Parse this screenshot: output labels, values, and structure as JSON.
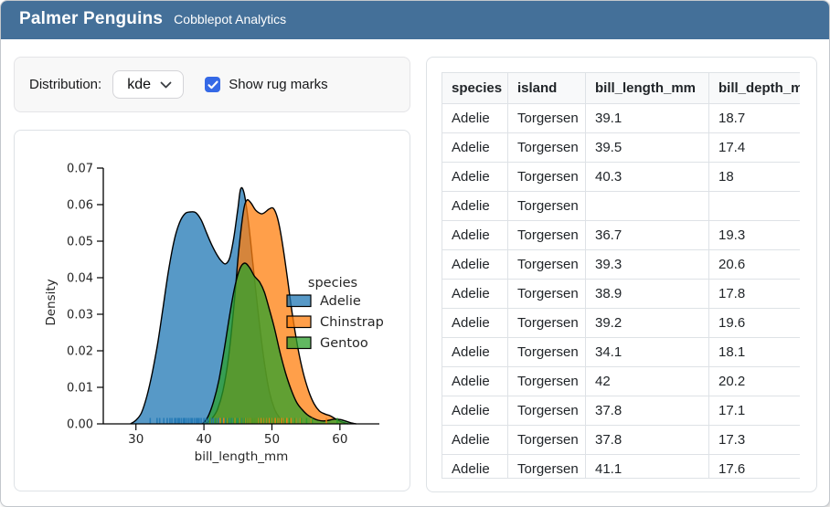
{
  "header": {
    "title": "Palmer Penguins",
    "subtitle": "Cobblepot Analytics",
    "bg_color": "#447099"
  },
  "controls": {
    "distribution_label": "Distribution:",
    "distribution_value": "kde",
    "rug_label": "Show rug marks",
    "rug_checked": true,
    "checkbox_color": "#3569e6"
  },
  "chart_data": {
    "type": "area",
    "kind": "kde-density",
    "title": "",
    "xlabel": "bill_length_mm",
    "ylabel": "Density",
    "xlim": [
      25.2,
      65.8
    ],
    "ylim": [
      0,
      0.07
    ],
    "xticks": [
      30,
      40,
      50,
      60
    ],
    "ytick_labels": [
      "0.00",
      "0.01",
      "0.02",
      "0.03",
      "0.04",
      "0.05",
      "0.06",
      "0.07"
    ],
    "grid": false,
    "legend": {
      "title": "species",
      "position": "center-right",
      "frame": false
    },
    "rug_visible": true,
    "series": [
      {
        "name": "Adelie",
        "color": "#1f77b4",
        "fill_opacity": 0.75,
        "points": [
          [
            29.2,
            0
          ],
          [
            30,
            0.001
          ],
          [
            30.8,
            0.003
          ],
          [
            31.6,
            0.0075
          ],
          [
            32.4,
            0.014
          ],
          [
            33.2,
            0.022
          ],
          [
            34,
            0.032
          ],
          [
            34.8,
            0.042
          ],
          [
            35.6,
            0.05
          ],
          [
            36.4,
            0.055
          ],
          [
            37.2,
            0.0575
          ],
          [
            38,
            0.058
          ],
          [
            38.8,
            0.0578
          ],
          [
            39.6,
            0.0558
          ],
          [
            40.4,
            0.0522
          ],
          [
            41.2,
            0.0488
          ],
          [
            42,
            0.046
          ],
          [
            42.6,
            0.0445
          ],
          [
            43.2,
            0.0438
          ],
          [
            43.8,
            0.0455
          ],
          [
            44.4,
            0.051
          ],
          [
            45,
            0.059
          ],
          [
            45.4,
            0.0643
          ],
          [
            45.9,
            0.0632
          ],
          [
            46.5,
            0.056
          ],
          [
            47.2,
            0.044
          ],
          [
            48,
            0.03
          ],
          [
            48.8,
            0.018
          ],
          [
            49.6,
            0.009
          ],
          [
            50.4,
            0.004
          ],
          [
            51.2,
            0.0015
          ],
          [
            52,
            0
          ]
        ],
        "rug": [
          32.1,
          33.1,
          33.5,
          34.1,
          34.6,
          35.0,
          35.3,
          35.7,
          35.9,
          36.2,
          36.4,
          36.7,
          37.0,
          37.2,
          37.5,
          37.8,
          38.1,
          38.3,
          38.6,
          38.9,
          39.1,
          39.3,
          39.6,
          40.0,
          40.3,
          40.6,
          40.9,
          41.1,
          41.4,
          41.8,
          42.2,
          42.7,
          43.2,
          43.7,
          44.1,
          45.0,
          45.6,
          46.0
        ]
      },
      {
        "name": "Chinstrap",
        "color": "#ff7f0e",
        "fill_opacity": 0.75,
        "points": [
          [
            40.3,
            0
          ],
          [
            41.2,
            0.0015
          ],
          [
            42,
            0.004
          ],
          [
            42.8,
            0.009
          ],
          [
            43.6,
            0.018
          ],
          [
            44.4,
            0.032
          ],
          [
            45.1,
            0.047
          ],
          [
            45.8,
            0.058
          ],
          [
            46.3,
            0.0612
          ],
          [
            46.9,
            0.0605
          ],
          [
            47.6,
            0.0585
          ],
          [
            48.4,
            0.0575
          ],
          [
            48.9,
            0.0578
          ],
          [
            49.6,
            0.0588
          ],
          [
            50.2,
            0.059
          ],
          [
            50.8,
            0.0565
          ],
          [
            51.4,
            0.051
          ],
          [
            52.2,
            0.041
          ],
          [
            53,
            0.03
          ],
          [
            53.8,
            0.021
          ],
          [
            54.6,
            0.014
          ],
          [
            55.4,
            0.009
          ],
          [
            56.2,
            0.0055
          ],
          [
            57,
            0.0035
          ],
          [
            57.8,
            0.0027
          ],
          [
            58.6,
            0.0022
          ],
          [
            59.4,
            0.0013
          ],
          [
            60.2,
            0.0006
          ],
          [
            61.2,
            0
          ]
        ],
        "rug": [
          40.9,
          42.4,
          42.9,
          43.5,
          44.5,
          45.2,
          45.7,
          46.1,
          46.4,
          46.7,
          46.9,
          47.2,
          47.5,
          47.8,
          48.1,
          48.4,
          48.7,
          49.0,
          49.3,
          49.6,
          49.9,
          50.2,
          50.5,
          50.8,
          51.1,
          51.4,
          51.8,
          52.2,
          52.8,
          53.5,
          54.2,
          55.8,
          58.0
        ]
      },
      {
        "name": "Gentoo",
        "color": "#2ca02c",
        "fill_opacity": 0.75,
        "points": [
          [
            39.8,
            0
          ],
          [
            40.6,
            0.002
          ],
          [
            41.4,
            0.006
          ],
          [
            42.2,
            0.012
          ],
          [
            43,
            0.0205
          ],
          [
            43.8,
            0.03
          ],
          [
            44.6,
            0.038
          ],
          [
            45.3,
            0.0425
          ],
          [
            46,
            0.044
          ],
          [
            46.7,
            0.0428
          ],
          [
            47.4,
            0.0405
          ],
          [
            48.2,
            0.0388
          ],
          [
            48.9,
            0.036
          ],
          [
            49.6,
            0.0315
          ],
          [
            50.4,
            0.026
          ],
          [
            51.2,
            0.0195
          ],
          [
            52,
            0.014
          ],
          [
            52.8,
            0.0095
          ],
          [
            53.6,
            0.006
          ],
          [
            54.4,
            0.004
          ],
          [
            55.2,
            0.0025
          ],
          [
            56,
            0.0016
          ],
          [
            56.8,
            0.001
          ],
          [
            57.6,
            0.0008
          ],
          [
            58.4,
            0.001
          ],
          [
            59.2,
            0.0013
          ],
          [
            60,
            0.0012
          ],
          [
            60.8,
            0.0008
          ],
          [
            61.6,
            0.0003
          ],
          [
            62.4,
            0
          ]
        ],
        "rug": [
          40.9,
          41.7,
          42.6,
          43.3,
          43.6,
          44.0,
          44.4,
          44.8,
          45.1,
          45.4,
          45.7,
          46.0,
          46.3,
          46.6,
          46.9,
          47.2,
          47.5,
          47.8,
          48.2,
          48.6,
          49.0,
          49.4,
          49.8,
          50.2,
          50.7,
          51.2,
          51.9,
          52.6,
          53.4,
          54.3,
          55.1,
          55.9,
          59.6
        ]
      }
    ]
  },
  "table": {
    "columns": [
      "species",
      "island",
      "bill_length_mm",
      "bill_depth_mm"
    ],
    "rows": [
      [
        "Adelie",
        "Torgersen",
        "39.1",
        "18.7"
      ],
      [
        "Adelie",
        "Torgersen",
        "39.5",
        "17.4"
      ],
      [
        "Adelie",
        "Torgersen",
        "40.3",
        "18"
      ],
      [
        "Adelie",
        "Torgersen",
        "",
        ""
      ],
      [
        "Adelie",
        "Torgersen",
        "36.7",
        "19.3"
      ],
      [
        "Adelie",
        "Torgersen",
        "39.3",
        "20.6"
      ],
      [
        "Adelie",
        "Torgersen",
        "38.9",
        "17.8"
      ],
      [
        "Adelie",
        "Torgersen",
        "39.2",
        "19.6"
      ],
      [
        "Adelie",
        "Torgersen",
        "34.1",
        "18.1"
      ],
      [
        "Adelie",
        "Torgersen",
        "42",
        "20.2"
      ],
      [
        "Adelie",
        "Torgersen",
        "37.8",
        "17.1"
      ],
      [
        "Adelie",
        "Torgersen",
        "37.8",
        "17.3"
      ],
      [
        "Adelie",
        "Torgersen",
        "41.1",
        "17.6"
      ]
    ]
  }
}
